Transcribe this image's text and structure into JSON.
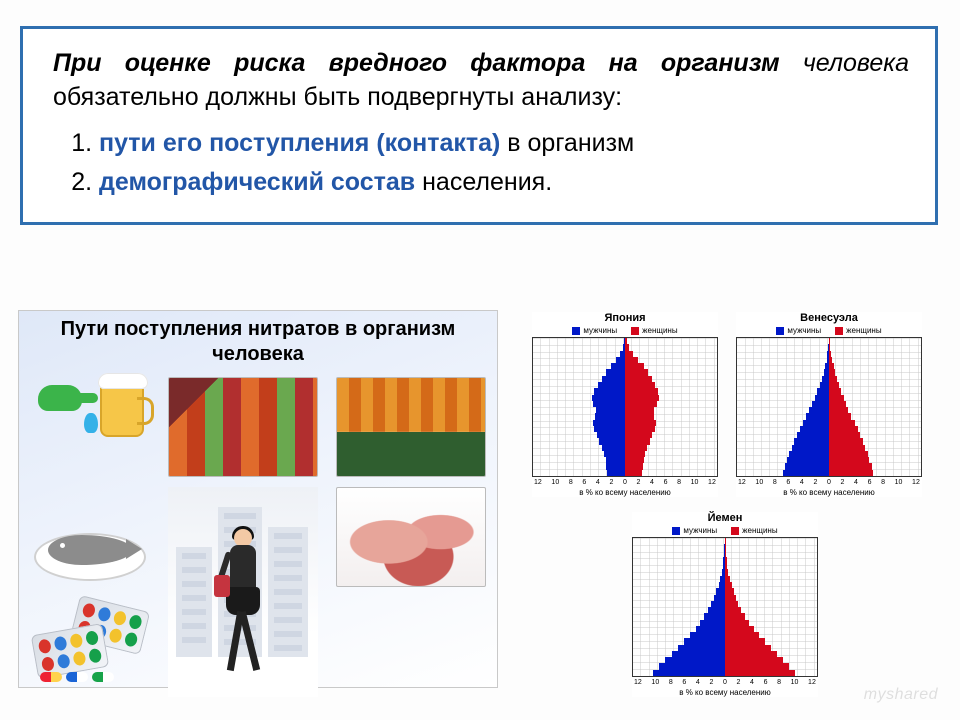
{
  "textbox": {
    "line1_bold_italic": "При оценке риска вредного фактора на организм",
    "line1_italic_cont": " человека",
    "line1_rest": " обязательно должны быть подвергнуты анализу:",
    "items": [
      {
        "hl": "пути его поступления (контакта)",
        "rest": " в организм"
      },
      {
        "hl": "демографический состав",
        "rest": " населения."
      }
    ],
    "border_color": "#2f6fb0",
    "hl_color": "#2256a7"
  },
  "infographic": {
    "title": "Пути поступления нитратов в организм человека",
    "tap_color": "#3bb44a",
    "drop_color": "#34b1e8",
    "beer_color": "#f6c648",
    "foam_color": "#ffffff",
    "fish_color": "#8c8c8c",
    "bag_color": "#c5343f",
    "blister_pill_colors": [
      "#d9342b",
      "#2f7bd9",
      "#f3c22c",
      "#15a04a"
    ]
  },
  "charts": {
    "legend_male": "мужчины",
    "legend_female": "женщины",
    "male_color": "#0018c8",
    "female_color": "#d4081c",
    "grid_color": "#c9c9c9",
    "xlabel": "в % ко всему населению",
    "ticks": [
      "12",
      "10",
      "8",
      "6",
      "4",
      "2",
      "0",
      "2",
      "4",
      "6",
      "8",
      "10",
      "12"
    ],
    "age_bins": 22,
    "pyramids": [
      {
        "title": "Япония",
        "male": [
          2.3,
          2.4,
          2.5,
          2.7,
          3.0,
          3.3,
          3.6,
          4.0,
          4.1,
          3.9,
          3.7,
          4.1,
          4.3,
          4.0,
          3.5,
          3.0,
          2.4,
          1.8,
          1.2,
          0.7,
          0.3,
          0.1
        ],
        "female": [
          2.2,
          2.3,
          2.4,
          2.6,
          2.9,
          3.2,
          3.5,
          3.9,
          4.0,
          3.8,
          3.7,
          4.1,
          4.4,
          4.2,
          3.9,
          3.5,
          3.0,
          2.4,
          1.7,
          1.0,
          0.5,
          0.2
        ]
      },
      {
        "title": "Венесуэла",
        "male": [
          5.9,
          5.7,
          5.4,
          5.1,
          4.8,
          4.5,
          4.1,
          3.8,
          3.4,
          3.0,
          2.6,
          2.2,
          1.8,
          1.5,
          1.2,
          0.9,
          0.7,
          0.5,
          0.3,
          0.2,
          0.1,
          0.05
        ],
        "female": [
          5.7,
          5.5,
          5.2,
          5.0,
          4.7,
          4.4,
          4.0,
          3.7,
          3.3,
          2.9,
          2.5,
          2.2,
          1.9,
          1.6,
          1.3,
          1.0,
          0.8,
          0.6,
          0.4,
          0.25,
          0.15,
          0.08
        ]
      },
      {
        "title": "Йемен",
        "male": [
          9.3,
          8.5,
          7.7,
          6.9,
          6.1,
          5.3,
          4.5,
          3.8,
          3.2,
          2.7,
          2.2,
          1.8,
          1.4,
          1.1,
          0.8,
          0.6,
          0.4,
          0.3,
          0.2,
          0.12,
          0.07,
          0.03
        ],
        "female": [
          9.0,
          8.2,
          7.5,
          6.7,
          5.9,
          5.1,
          4.4,
          3.7,
          3.1,
          2.6,
          2.1,
          1.7,
          1.4,
          1.1,
          0.85,
          0.65,
          0.45,
          0.32,
          0.22,
          0.14,
          0.08,
          0.04
        ]
      }
    ],
    "max_percent": 12
  },
  "watermark": "myshared"
}
